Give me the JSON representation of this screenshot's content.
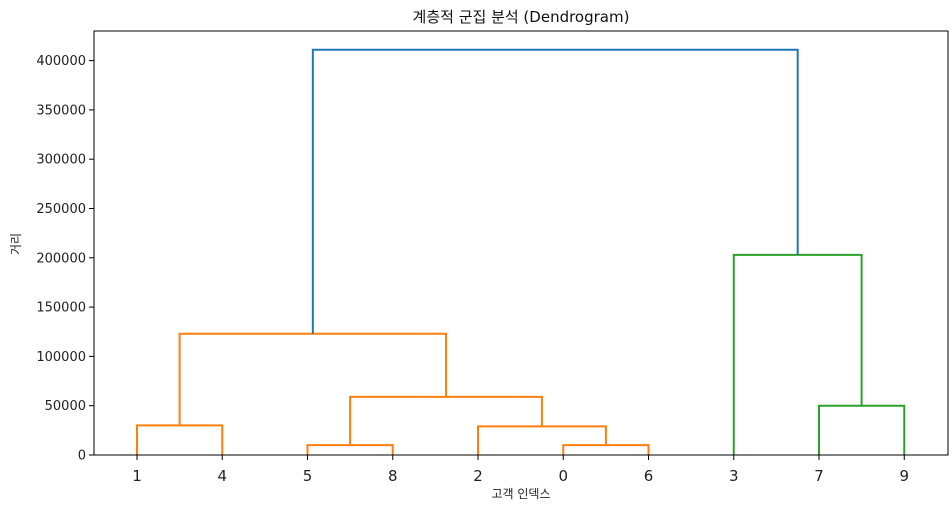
{
  "chart_data": {
    "type": "dendrogram",
    "title": "계층적 군집 분석 (Dendrogram)",
    "xlabel": "고객 인덱스",
    "ylabel": "거리",
    "ylim": [
      0,
      430000
    ],
    "yticks": [
      0,
      50000,
      100000,
      150000,
      200000,
      250000,
      300000,
      350000,
      400000
    ],
    "leaf_order": [
      "1",
      "4",
      "5",
      "8",
      "2",
      "0",
      "6",
      "3",
      "7",
      "9"
    ],
    "colors": {
      "orange": "#ff7f0e",
      "green": "#2ca02c",
      "blue": "#1f77b4"
    },
    "links": [
      {
        "left": 0,
        "left_height": 0,
        "right": 1,
        "right_height": 0,
        "height": 30000,
        "color": "orange"
      },
      {
        "left": 2,
        "left_height": 0,
        "right": 3,
        "right_height": 0,
        "height": 10000,
        "color": "orange"
      },
      {
        "left": 5,
        "left_height": 0,
        "right": 6,
        "right_height": 0,
        "height": 10000,
        "color": "orange"
      },
      {
        "left": 4,
        "left_height": 0,
        "right": 5.5,
        "right_height": 10000,
        "height": 29000,
        "color": "orange"
      },
      {
        "left": 2.5,
        "left_height": 10000,
        "right": 4.75,
        "right_height": 29000,
        "height": 59000,
        "color": "orange"
      },
      {
        "left": 0.5,
        "left_height": 30000,
        "right": 3.625,
        "right_height": 59000,
        "height": 123000,
        "color": "orange"
      },
      {
        "left": 8,
        "left_height": 0,
        "right": 9,
        "right_height": 0,
        "height": 50000,
        "color": "green"
      },
      {
        "left": 7,
        "left_height": 0,
        "right": 8.5,
        "right_height": 50000,
        "height": 203000,
        "color": "green"
      },
      {
        "left": 2.0625,
        "left_height": 123000,
        "right": 7.75,
        "right_height": 203000,
        "height": 411000,
        "color": "blue"
      }
    ]
  }
}
